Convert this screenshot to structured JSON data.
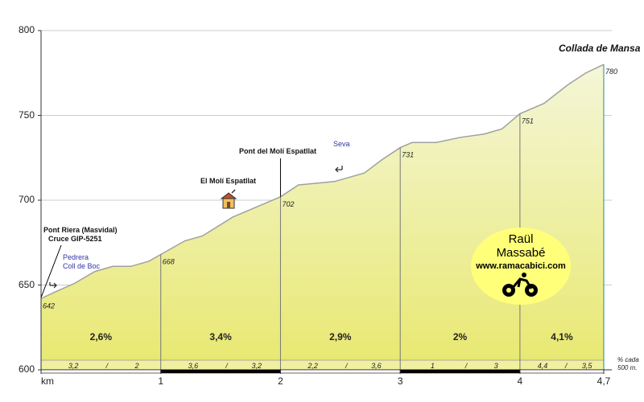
{
  "chart_data": {
    "type": "area",
    "title": "Collada de Mansa",
    "xlabel": "km",
    "ylabel": "",
    "xlim": [
      0,
      4.7
    ],
    "ylim": [
      600,
      800
    ],
    "y_ticks": [
      "600",
      "650",
      "700",
      "750",
      "800"
    ],
    "x_ticks": [
      {
        "value": 0,
        "label": "km"
      },
      {
        "value": 1,
        "label": "1"
      },
      {
        "value": 2,
        "label": "2"
      },
      {
        "value": 3,
        "label": "3"
      },
      {
        "value": 4,
        "label": "4"
      },
      {
        "value": 4.7,
        "label": "4,7"
      }
    ],
    "profile": [
      {
        "x": 0,
        "y": 642
      },
      {
        "x": 0.12,
        "y": 646
      },
      {
        "x": 0.28,
        "y": 651
      },
      {
        "x": 0.45,
        "y": 658
      },
      {
        "x": 0.6,
        "y": 661
      },
      {
        "x": 0.75,
        "y": 661
      },
      {
        "x": 0.9,
        "y": 664
      },
      {
        "x": 1.0,
        "y": 668
      },
      {
        "x": 1.2,
        "y": 676
      },
      {
        "x": 1.35,
        "y": 679
      },
      {
        "x": 1.6,
        "y": 690
      },
      {
        "x": 1.8,
        "y": 696
      },
      {
        "x": 2.0,
        "y": 702
      },
      {
        "x": 2.15,
        "y": 709
      },
      {
        "x": 2.3,
        "y": 710
      },
      {
        "x": 2.45,
        "y": 711
      },
      {
        "x": 2.6,
        "y": 714
      },
      {
        "x": 2.7,
        "y": 716
      },
      {
        "x": 2.85,
        "y": 724
      },
      {
        "x": 3.0,
        "y": 731
      },
      {
        "x": 3.1,
        "y": 734
      },
      {
        "x": 3.3,
        "y": 734
      },
      {
        "x": 3.5,
        "y": 737
      },
      {
        "x": 3.7,
        "y": 739
      },
      {
        "x": 3.85,
        "y": 742
      },
      {
        "x": 4.0,
        "y": 751
      },
      {
        "x": 4.2,
        "y": 757
      },
      {
        "x": 4.4,
        "y": 768
      },
      {
        "x": 4.55,
        "y": 775
      },
      {
        "x": 4.7,
        "y": 780
      }
    ],
    "marked_points": [
      {
        "x": 0,
        "y": 642,
        "label": "642"
      },
      {
        "x": 1,
        "y": 668,
        "label": "668"
      },
      {
        "x": 2,
        "y": 702,
        "label": "702"
      },
      {
        "x": 3,
        "y": 731,
        "label": "731"
      },
      {
        "x": 4,
        "y": 751,
        "label": "751"
      },
      {
        "x": 4.7,
        "y": 780,
        "label": "780"
      }
    ],
    "segment_gradients": [
      {
        "from": 0,
        "to": 1,
        "label": "2,6%",
        "sub": [
          "3,2",
          "/",
          "2"
        ]
      },
      {
        "from": 1,
        "to": 2,
        "label": "3,4%",
        "sub": [
          "3,6",
          "/",
          "3,2"
        ]
      },
      {
        "from": 2,
        "to": 3,
        "label": "2,9%",
        "sub": [
          "2,2",
          "/",
          "3,6"
        ]
      },
      {
        "from": 3,
        "to": 4,
        "label": "2%",
        "sub": [
          "1",
          "/",
          "3"
        ]
      },
      {
        "from": 4,
        "to": 4.7,
        "label": "4,1%",
        "sub": [
          "4,4",
          "/",
          "3,5"
        ]
      }
    ],
    "colors": {
      "fill_top": "#f4f6d8",
      "fill_bottom": "#e8e870",
      "line": "#a0a0a0",
      "axis_bar": "#000000",
      "drop_line": "#777777",
      "end_line": "#2a8a8a"
    }
  },
  "annotations": {
    "summit": "Collada de Mansa",
    "pont_riera": "Pont Riera (Masvidal)",
    "cruce": "Cruce GIP-5251",
    "pedrera": "Pedrera",
    "coll_de_boc": "Coll de Boc",
    "moli": "El Molí Espatllat",
    "pont_moli": "Pont del Molí Espatllat",
    "seva": "Seva"
  },
  "icons": {
    "house": "house-icon",
    "cyclist": "cyclist-icon",
    "arrow_right": "arrow-right-icon",
    "arrow_left": "arrow-left-icon"
  },
  "badge": {
    "name_line1": "Raül",
    "name_line2": "Massabé",
    "site": "www.ramacabici.com"
  },
  "footnote": {
    "line1": "% cada",
    "line2": "500 m."
  }
}
